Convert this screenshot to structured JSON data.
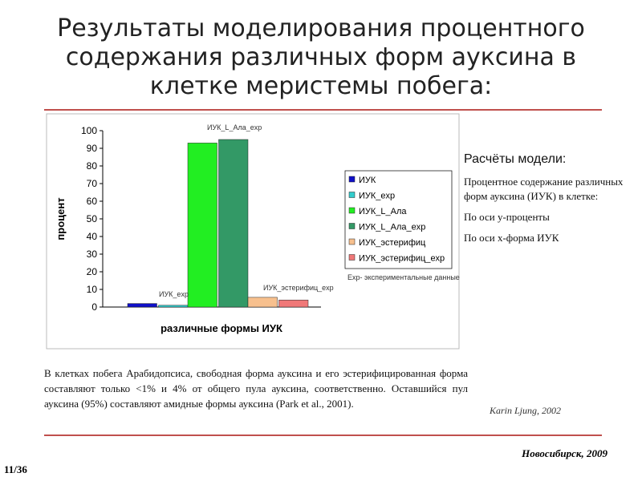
{
  "title_lines": [
    "Результаты моделирования процентного",
    "содержания различных форм ауксина в",
    "клетке меристемы побега:"
  ],
  "chart_data": {
    "type": "bar",
    "series": [
      {
        "name": "ИУК",
        "color": "#1010c8",
        "values": [
          2
        ]
      },
      {
        "name": "ИУК_exp",
        "color": "#33cccc",
        "values": [
          1
        ]
      },
      {
        "name": "ИУК_L_Ала",
        "color": "#22ee22",
        "values": [
          93
        ]
      },
      {
        "name": "ИУК_L_Ала_exp",
        "color": "#339966",
        "values": [
          95
        ]
      },
      {
        "name": "ИУК_эстерифиц",
        "color": "#f7c08e",
        "values": [
          5.5
        ]
      },
      {
        "name": "ИУК_эстерифиц_exp",
        "color": "#f07878",
        "values": [
          4
        ]
      }
    ],
    "ylim": [
      0,
      100
    ],
    "yticks": [
      0,
      10,
      20,
      30,
      40,
      50,
      60,
      70,
      80,
      90,
      100
    ],
    "y_label": "процент",
    "x_label": "различные формы ИУК",
    "annotations": [
      "ИУК_exp",
      "ИУК_L_Ала_exp",
      "ИУК_эстерифиц_exp"
    ],
    "note": "Exp- экспериментальные данные"
  },
  "side": {
    "heading": "Расчёты модели:",
    "lines": [
      "Процентное содержание различных форм ауксина (ИУК) в клетке:",
      "По оси y-проценты",
      "По оси x-форма ИУК"
    ]
  },
  "paragraph": "В клетках побега Арабидопсиса, свободная форма ауксина и его эстерифицированная форма составляют только <1% и 4% от общего пула ауксина, соответственно. Оставшийся пул ауксина (95%) составляют амидные формы ауксина (Park et al., 2001).",
  "source": "Karin Ljung, 2002",
  "footer": "Новосибирск, 2009",
  "page": "11/36"
}
